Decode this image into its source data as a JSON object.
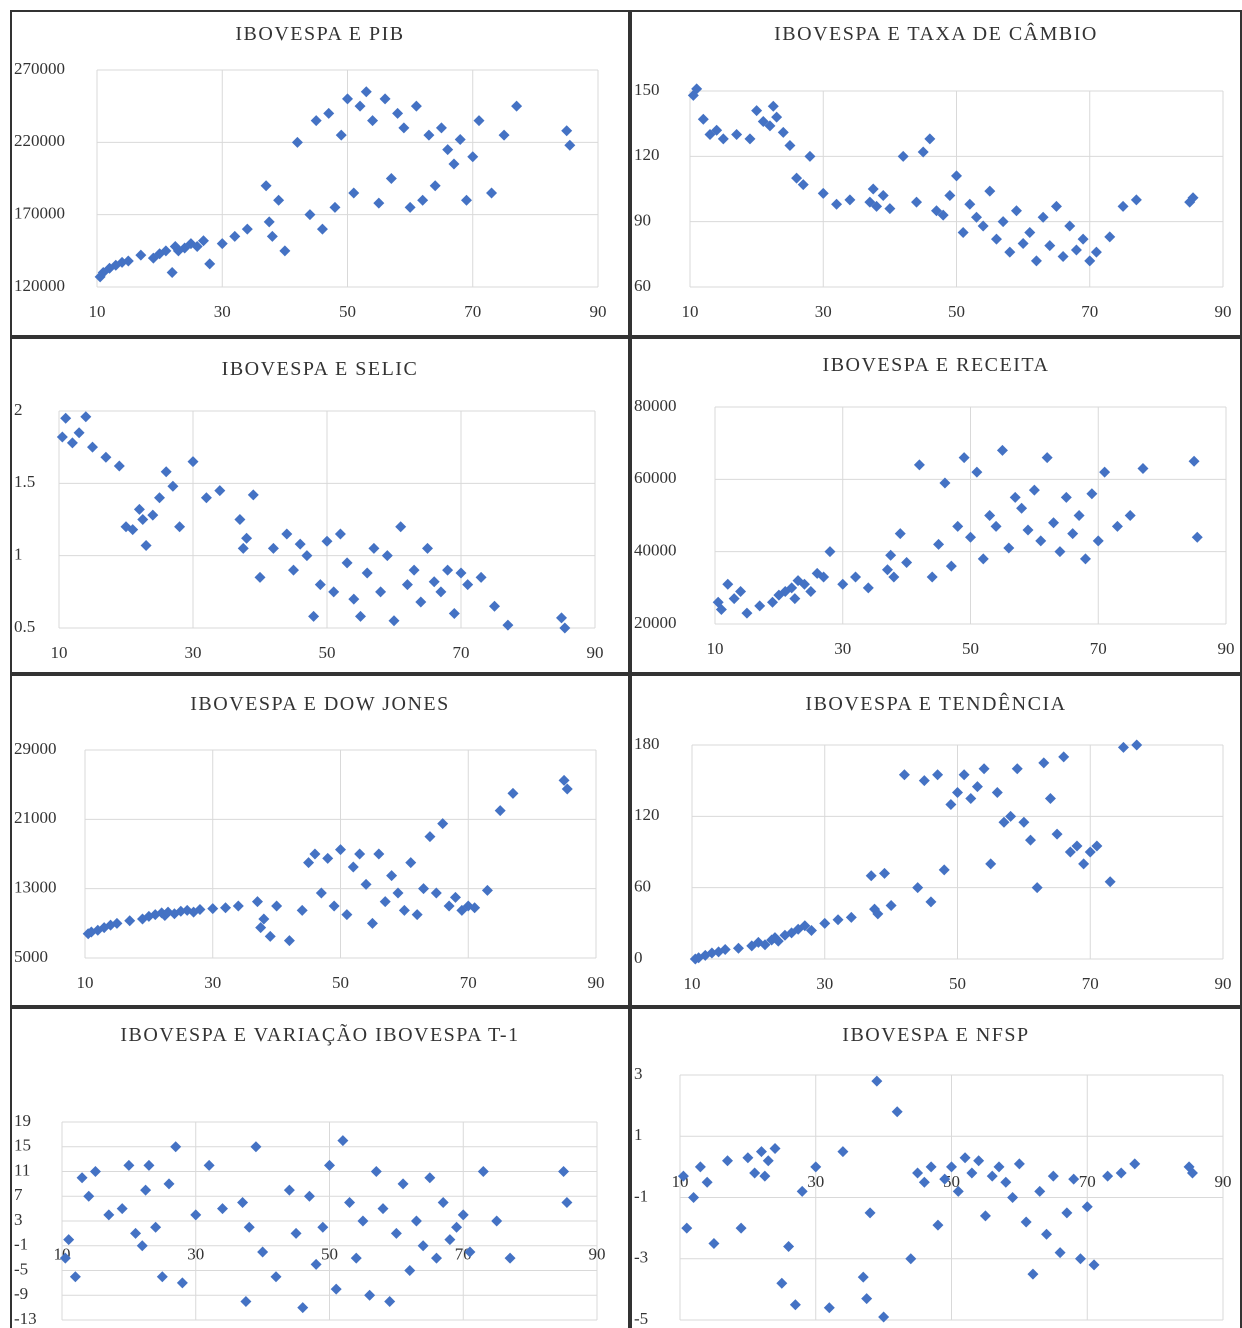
{
  "chart_data": [
    {
      "type": "scatter",
      "title": "IBOVESPA E PIB",
      "color": "#4472c4",
      "grid": true,
      "x": [
        10.5,
        11,
        12,
        13,
        14,
        15,
        17,
        19,
        20,
        21,
        22,
        22.5,
        23,
        24,
        25,
        26,
        27,
        28,
        30,
        32,
        34,
        37,
        37.5,
        38,
        39,
        40,
        42,
        44,
        45,
        46,
        47,
        48,
        49,
        50,
        51,
        52,
        53,
        54,
        55,
        56,
        57,
        58,
        59,
        60,
        61,
        62,
        63,
        64,
        65,
        66,
        67,
        68,
        69,
        70,
        71,
        73,
        75,
        77,
        85,
        85.5
      ],
      "y": [
        127000,
        130000,
        133000,
        135000,
        137000,
        138000,
        142000,
        140000,
        143000,
        145000,
        130000,
        148000,
        145000,
        147000,
        150000,
        148000,
        152000,
        136000,
        150000,
        155000,
        160000,
        190000,
        165000,
        155000,
        180000,
        145000,
        220000,
        170000,
        235000,
        160000,
        240000,
        175000,
        225000,
        250000,
        185000,
        245000,
        255000,
        235000,
        178000,
        250000,
        195000,
        240000,
        230000,
        175000,
        245000,
        180000,
        225000,
        190000,
        230000,
        215000,
        205000,
        222000,
        180000,
        210000,
        235000,
        185000,
        225000,
        245000,
        228000,
        218000
      ],
      "xlim": [
        10,
        90
      ],
      "xticks": [
        10,
        30,
        50,
        70,
        90
      ],
      "ylim": [
        120000,
        270000
      ],
      "yticks": [
        120000,
        170000,
        220000,
        270000
      ]
    },
    {
      "type": "scatter",
      "title": "IBOVESPA E TAXA DE CÂMBIO",
      "color": "#4472c4",
      "grid": true,
      "x": [
        10.5,
        11,
        12,
        13,
        14,
        15,
        17,
        19,
        20,
        21,
        22,
        22.5,
        23,
        24,
        25,
        26,
        27,
        28,
        30,
        32,
        34,
        37,
        37.5,
        38,
        39,
        40,
        42,
        44,
        45,
        46,
        47,
        48,
        49,
        50,
        51,
        52,
        53,
        54,
        55,
        56,
        57,
        58,
        59,
        60,
        61,
        62,
        63,
        64,
        65,
        66,
        67,
        68,
        69,
        70,
        71,
        73,
        75,
        77,
        85,
        85.5
      ],
      "y": [
        148,
        151,
        137,
        130,
        132,
        128,
        130,
        128,
        141,
        136,
        134,
        143,
        138,
        131,
        125,
        110,
        107,
        120,
        103,
        98,
        100,
        99,
        105,
        97,
        102,
        96,
        120,
        99,
        122,
        128,
        95,
        93,
        102,
        111,
        85,
        98,
        92,
        88,
        104,
        82,
        90,
        76,
        95,
        80,
        85,
        72,
        92,
        79,
        97,
        74,
        88,
        77,
        82,
        72,
        76,
        83,
        97,
        100,
        99,
        101
      ],
      "xlim": [
        10,
        90
      ],
      "xticks": [
        10,
        30,
        50,
        70,
        90
      ],
      "ylim": [
        60,
        150
      ],
      "yticks": [
        60,
        90,
        120,
        150
      ]
    },
    {
      "type": "scatter",
      "title": "IBOVESPA E SELIC",
      "color": "#4472c4",
      "grid": true,
      "x": [
        10.5,
        11,
        12,
        13,
        14,
        15,
        17,
        19,
        20,
        21,
        22,
        22.5,
        23,
        24,
        25,
        26,
        27,
        28,
        30,
        32,
        34,
        37,
        37.5,
        38,
        39,
        40,
        42,
        44,
        45,
        46,
        47,
        48,
        49,
        50,
        51,
        52,
        53,
        54,
        55,
        56,
        57,
        58,
        59,
        60,
        61,
        62,
        63,
        64,
        65,
        66,
        67,
        68,
        69,
        70,
        71,
        73,
        75,
        77,
        85,
        85.5
      ],
      "y": [
        1.82,
        1.95,
        1.78,
        1.85,
        1.96,
        1.75,
        1.68,
        1.62,
        1.2,
        1.18,
        1.32,
        1.25,
        1.07,
        1.28,
        1.4,
        1.58,
        1.48,
        1.2,
        1.65,
        1.4,
        1.45,
        1.25,
        1.05,
        1.12,
        1.42,
        0.85,
        1.05,
        1.15,
        0.9,
        1.08,
        1.0,
        0.58,
        0.8,
        1.1,
        0.75,
        1.15,
        0.95,
        0.7,
        0.58,
        0.88,
        1.05,
        0.75,
        1.0,
        0.55,
        1.2,
        0.8,
        0.9,
        0.68,
        1.05,
        0.82,
        0.75,
        0.9,
        0.6,
        0.88,
        0.8,
        0.85,
        0.65,
        0.52,
        0.57,
        0.5
      ],
      "xlim": [
        10,
        90
      ],
      "xticks": [
        10,
        30,
        50,
        70,
        90
      ],
      "ylim": [
        0.5,
        2
      ],
      "yticks": [
        0.5,
        1,
        1.5,
        2
      ]
    },
    {
      "type": "scatter",
      "title": "IBOVESPA E RECEITA",
      "color": "#4472c4",
      "grid": true,
      "x": [
        10.5,
        11,
        12,
        13,
        14,
        15,
        17,
        19,
        20,
        21,
        22,
        22.5,
        23,
        24,
        25,
        26,
        27,
        28,
        30,
        32,
        34,
        37,
        37.5,
        38,
        39,
        40,
        42,
        44,
        45,
        46,
        47,
        48,
        49,
        50,
        51,
        52,
        53,
        54,
        55,
        56,
        57,
        58,
        59,
        60,
        61,
        62,
        63,
        64,
        65,
        66,
        67,
        68,
        69,
        70,
        71,
        73,
        75,
        77,
        85,
        85.5
      ],
      "y": [
        26000,
        24000,
        31000,
        27000,
        29000,
        23000,
        25000,
        26000,
        28000,
        29000,
        30000,
        27000,
        32000,
        31000,
        29000,
        34000,
        33000,
        40000,
        31000,
        33000,
        30000,
        35000,
        39000,
        33000,
        45000,
        37000,
        64000,
        33000,
        42000,
        59000,
        36000,
        47000,
        66000,
        44000,
        62000,
        38000,
        50000,
        47000,
        68000,
        41000,
        55000,
        52000,
        46000,
        57000,
        43000,
        66000,
        48000,
        40000,
        55000,
        45000,
        50000,
        38000,
        56000,
        43000,
        62000,
        47000,
        50000,
        63000,
        65000,
        44000
      ],
      "xlim": [
        10,
        90
      ],
      "xticks": [
        10,
        30,
        50,
        70,
        90
      ],
      "ylim": [
        20000,
        80000
      ],
      "yticks": [
        20000,
        40000,
        60000,
        80000
      ]
    },
    {
      "type": "scatter",
      "title": "IBOVESPA E DOW JONES",
      "color": "#4472c4",
      "grid": true,
      "x": [
        10.5,
        11,
        12,
        13,
        14,
        15,
        17,
        19,
        20,
        21,
        22,
        22.5,
        23,
        24,
        25,
        26,
        27,
        28,
        30,
        32,
        34,
        37,
        37.5,
        38,
        39,
        40,
        42,
        44,
        45,
        46,
        47,
        48,
        49,
        50,
        51,
        52,
        53,
        54,
        55,
        56,
        57,
        58,
        59,
        60,
        61,
        62,
        63,
        64,
        65,
        66,
        67,
        68,
        69,
        70,
        71,
        73,
        75,
        77,
        85,
        85.5
      ],
      "y": [
        7800,
        8000,
        8200,
        8500,
        8800,
        9000,
        9300,
        9500,
        9800,
        10000,
        10200,
        9900,
        10300,
        10100,
        10400,
        10500,
        10300,
        10600,
        10700,
        10800,
        11000,
        11500,
        8500,
        9500,
        7500,
        11000,
        7000,
        10500,
        16000,
        17000,
        12500,
        16500,
        11000,
        17500,
        10000,
        15500,
        17000,
        13500,
        9000,
        17000,
        11500,
        14500,
        12500,
        10500,
        16000,
        10000,
        13000,
        19000,
        12500,
        20500,
        11000,
        12000,
        10500,
        11000,
        10800,
        12800,
        22000,
        24000,
        25500,
        24500
      ],
      "xlim": [
        10,
        90
      ],
      "xticks": [
        10,
        30,
        50,
        70,
        90
      ],
      "ylim": [
        5000,
        29000
      ],
      "yticks": [
        5000,
        13000,
        21000,
        29000
      ]
    },
    {
      "type": "scatter",
      "title": "IBOVESPA E TENDÊNCIA",
      "color": "#4472c4",
      "grid": true,
      "x": [
        10.5,
        11,
        12,
        13,
        14,
        15,
        17,
        19,
        20,
        21,
        22,
        22.5,
        23,
        24,
        25,
        26,
        27,
        28,
        30,
        32,
        34,
        37,
        37.5,
        38,
        39,
        40,
        42,
        44,
        45,
        46,
        47,
        48,
        49,
        50,
        51,
        52,
        53,
        54,
        55,
        56,
        57,
        58,
        59,
        60,
        61,
        62,
        63,
        64,
        65,
        66,
        67,
        68,
        69,
        70,
        71,
        73,
        75,
        77,
        85,
        85.5
      ],
      "y": [
        0,
        1,
        3,
        5,
        6,
        8,
        9,
        11,
        14,
        12,
        16,
        18,
        15,
        20,
        22,
        25,
        28,
        24,
        30,
        33,
        35,
        70,
        42,
        38,
        72,
        45,
        155,
        60,
        150,
        48,
        155,
        75,
        130,
        140,
        155,
        135,
        145,
        160,
        80,
        140,
        115,
        120,
        160,
        115,
        100,
        60,
        165,
        135,
        105,
        170,
        90,
        95,
        80,
        90,
        95,
        65,
        178,
        180,
        null,
        null
      ],
      "xlim": [
        10,
        90
      ],
      "xticks": [
        10,
        30,
        50,
        70,
        90
      ],
      "ylim": [
        0,
        180
      ],
      "yticks": [
        0,
        60,
        120,
        180
      ]
    },
    {
      "type": "scatter",
      "title": "IBOVESPA E VARIAÇÃO IBOVESPA T-1",
      "color": "#4472c4",
      "grid": true,
      "x": [
        10.5,
        11,
        12,
        13,
        14,
        15,
        17,
        19,
        20,
        21,
        22,
        22.5,
        23,
        24,
        25,
        26,
        27,
        28,
        30,
        32,
        34,
        37,
        37.5,
        38,
        39,
        40,
        42,
        44,
        45,
        46,
        47,
        48,
        49,
        50,
        51,
        52,
        53,
        54,
        55,
        56,
        57,
        58,
        59,
        60,
        61,
        62,
        63,
        64,
        65,
        66,
        67,
        68,
        69,
        70,
        71,
        73,
        75,
        77,
        85,
        85.5
      ],
      "y": [
        -3,
        0,
        -6,
        10,
        7,
        11,
        4,
        5,
        12,
        1,
        -1,
        8,
        12,
        2,
        -6,
        9,
        15,
        -7,
        4,
        12,
        5,
        6,
        -10,
        2,
        15,
        -2,
        -6,
        8,
        1,
        -11,
        7,
        -4,
        2,
        12,
        -8,
        16,
        6,
        -3,
        3,
        -9,
        11,
        5,
        -10,
        1,
        9,
        -5,
        3,
        -1,
        10,
        -3,
        6,
        0,
        2,
        4,
        -2,
        11,
        3,
        -3,
        11,
        6
      ],
      "xlim": [
        10,
        90
      ],
      "xticks": [
        10,
        30,
        50,
        70,
        90
      ],
      "ylim": [
        -13,
        19
      ],
      "yticks": [
        19,
        15,
        11,
        7,
        3,
        -1,
        -5,
        -9,
        -13
      ]
    },
    {
      "type": "scatter",
      "title": "IBOVESPA E NFSP",
      "color": "#4472c4",
      "grid": true,
      "x": [
        10.5,
        11,
        12,
        13,
        14,
        15,
        17,
        19,
        20,
        21,
        22,
        22.5,
        23,
        24,
        25,
        26,
        27,
        28,
        30,
        32,
        34,
        37,
        37.5,
        38,
        39,
        40,
        42,
        44,
        45,
        46,
        47,
        48,
        49,
        50,
        51,
        52,
        53,
        54,
        55,
        56,
        57,
        58,
        59,
        60,
        61,
        62,
        63,
        64,
        65,
        66,
        67,
        68,
        69,
        70,
        71,
        73,
        75,
        77,
        85,
        85.5
      ],
      "y": [
        -0.3,
        -2,
        -1,
        0,
        -0.5,
        -2.5,
        0.2,
        -2,
        0.3,
        -0.2,
        0.5,
        -0.3,
        0.2,
        0.6,
        -3.8,
        -2.6,
        -4.5,
        -0.8,
        0,
        -4.6,
        0.5,
        -3.6,
        -4.3,
        -1.5,
        2.8,
        -4.9,
        1.8,
        -3,
        -0.2,
        -0.5,
        0,
        -1.9,
        -0.4,
        0,
        -0.8,
        0.3,
        -0.2,
        0.2,
        -1.6,
        -0.3,
        0,
        -0.5,
        -1,
        0.1,
        -1.8,
        -3.5,
        -0.8,
        -2.2,
        -0.3,
        -2.8,
        -1.5,
        -0.4,
        -3,
        -1.3,
        -3.2,
        -0.3,
        -0.2,
        0.1,
        0,
        -0.2
      ],
      "xlim": [
        10,
        90
      ],
      "xticks": [
        10,
        30,
        50,
        70,
        90
      ],
      "ylim": [
        -5,
        3
      ],
      "yticks": [
        3,
        1,
        -1,
        -3,
        -5
      ]
    }
  ]
}
